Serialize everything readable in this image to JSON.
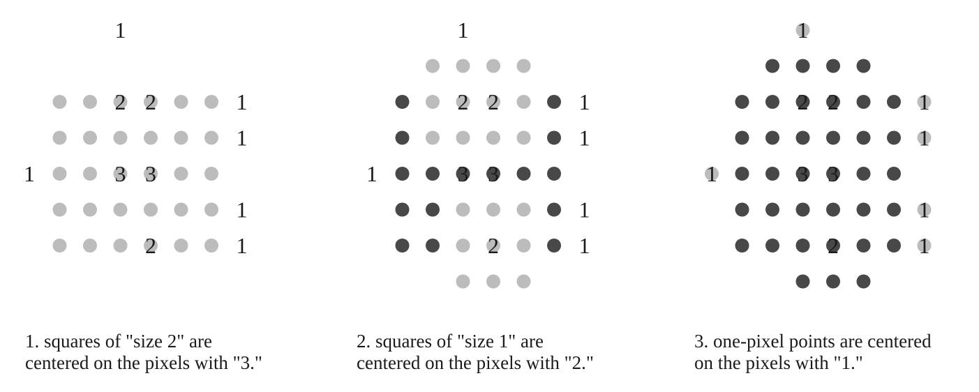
{
  "colors": {
    "light_dot": "#bcbcbc",
    "dark_dot": "#484848",
    "text": "#1a1a1a"
  },
  "panels": [
    {
      "id": "panel-1",
      "grid": [
        "...1....",
        "........",
        ".LLLLLL1",
        ".LLLLLL1",
        "1LLLLLL.",
        ".LLLLLL1",
        ".LLLLLL1",
        "........"
      ],
      "labels": [
        {
          "row": 2,
          "col": 3,
          "text": "2"
        },
        {
          "row": 2,
          "col": 4,
          "text": "2"
        },
        {
          "row": 4,
          "col": 3,
          "text": "3"
        },
        {
          "row": 4,
          "col": 4,
          "text": "3"
        },
        {
          "row": 6,
          "col": 4,
          "text": "2"
        }
      ],
      "caption": [
        "1. squares of \"size 2\" are",
        "centered on the pixels with \"3.\""
      ]
    },
    {
      "id": "panel-2",
      "grid": [
        "...1....",
        "..LLLL..",
        ".DLLLLD1",
        ".DLLLLD1",
        "1DDDDDD.",
        ".DDLLLD1",
        ".DDLLLD1",
        "...LLL.."
      ],
      "labels": [
        {
          "row": 2,
          "col": 3,
          "text": "2"
        },
        {
          "row": 2,
          "col": 4,
          "text": "2"
        },
        {
          "row": 4,
          "col": 3,
          "text": "3"
        },
        {
          "row": 4,
          "col": 4,
          "text": "3"
        },
        {
          "row": 6,
          "col": 4,
          "text": "2"
        }
      ],
      "caption": [
        "2. squares of \"size 1\" are",
        "centered on the pixels with \"2.\""
      ]
    },
    {
      "id": "panel-3",
      "grid": [
        "...L....",
        "..DDDD..",
        ".DDDDDDL",
        ".DDDDDDL",
        "LDDDDDD.",
        ".DDDDDDL",
        ".DDDDDDL",
        "...DDD.."
      ],
      "labels": [
        {
          "row": 0,
          "col": 3,
          "text": "1"
        },
        {
          "row": 2,
          "col": 3,
          "text": "2"
        },
        {
          "row": 2,
          "col": 4,
          "text": "2"
        },
        {
          "row": 2,
          "col": 7,
          "text": "1"
        },
        {
          "row": 3,
          "col": 7,
          "text": "1"
        },
        {
          "row": 4,
          "col": 0,
          "text": "1"
        },
        {
          "row": 4,
          "col": 3,
          "text": "3"
        },
        {
          "row": 4,
          "col": 4,
          "text": "3"
        },
        {
          "row": 5,
          "col": 7,
          "text": "1"
        },
        {
          "row": 6,
          "col": 4,
          "text": "2"
        },
        {
          "row": 6,
          "col": 7,
          "text": "1"
        }
      ],
      "caption": [
        "3. one-pixel points are centered",
        "on the pixels with \"1.\""
      ]
    }
  ]
}
